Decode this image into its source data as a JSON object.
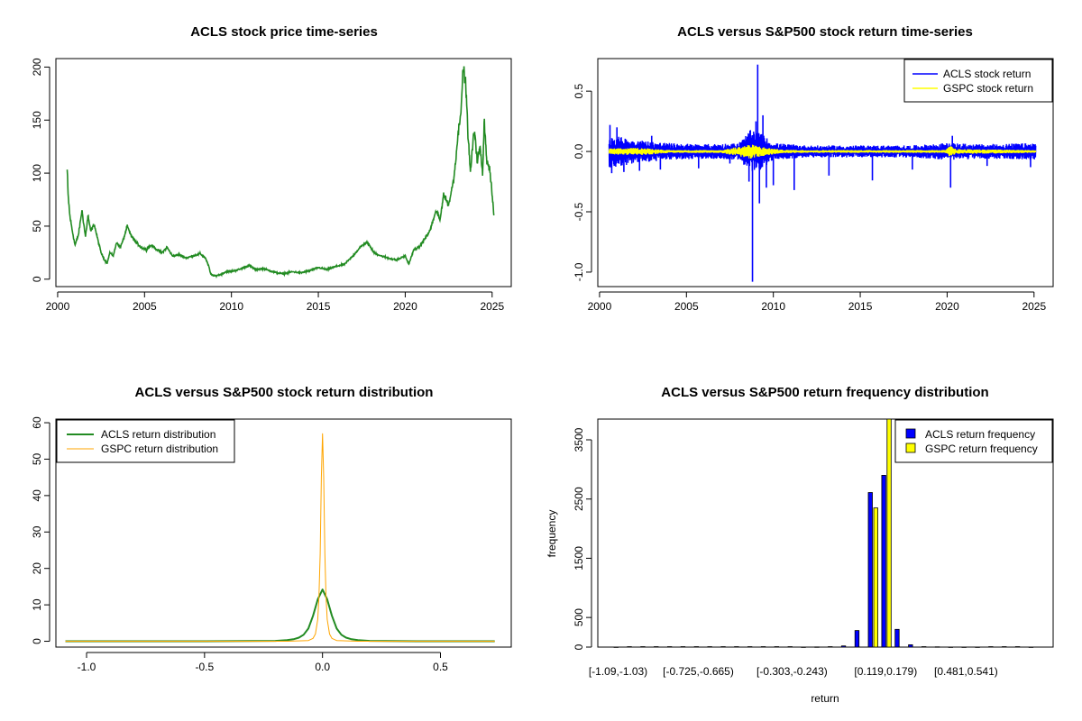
{
  "colors": {
    "acls_price": "#228B22",
    "acls_return": "#0000FF",
    "gspc_return": "#FFFF00",
    "acls_density": "#228B22",
    "gspc_density": "#FFA500",
    "acls_hist": "#0000FF",
    "gspc_hist": "#FFFF00"
  },
  "chart_data": [
    {
      "id": "p1",
      "type": "line",
      "title": "ACLS stock price time-series",
      "xlabel": "",
      "ylabel": "",
      "xlim": [
        1999.9,
        2026.1
      ],
      "ylim": [
        -7,
        208
      ],
      "xticks": [
        2000,
        2005,
        2010,
        2015,
        2020,
        2025
      ],
      "yticks": [
        0,
        50,
        100,
        150,
        200
      ],
      "series": [
        {
          "color": "#228B22",
          "x": [
            2000.55,
            2000.6,
            2000.7,
            2000.85,
            2001.0,
            2001.2,
            2001.4,
            2001.6,
            2001.75,
            2001.9,
            2002.1,
            2002.3,
            2002.5,
            2002.7,
            2002.85,
            2003.0,
            2003.2,
            2003.4,
            2003.6,
            2003.8,
            2004.0,
            2004.2,
            2004.5,
            2004.8,
            2005.1,
            2005.4,
            2005.7,
            2006.0,
            2006.3,
            2006.6,
            2007.0,
            2007.4,
            2007.8,
            2008.2,
            2008.5,
            2008.7,
            2008.8,
            2009.0,
            2009.3,
            2009.7,
            2010.2,
            2010.6,
            2011.0,
            2011.4,
            2011.8,
            2012.2,
            2012.6,
            2013.0,
            2013.5,
            2014.0,
            2014.5,
            2015.0,
            2015.5,
            2016.0,
            2016.5,
            2017.0,
            2017.4,
            2017.8,
            2018.2,
            2018.6,
            2019.0,
            2019.5,
            2020.0,
            2020.2,
            2020.5,
            2020.8,
            2021.0,
            2021.4,
            2021.8,
            2022.0,
            2022.2,
            2022.5,
            2022.8,
            2023.0,
            2023.2,
            2023.35,
            2023.5,
            2023.6,
            2023.75,
            2023.9,
            2024.0,
            2024.15,
            2024.3,
            2024.45,
            2024.55,
            2024.7,
            2024.85,
            2025.0,
            2025.1
          ],
          "y": [
            103,
            80,
            60,
            45,
            32,
            42,
            65,
            40,
            60,
            45,
            52,
            38,
            25,
            18,
            15,
            25,
            22,
            35,
            30,
            38,
            50,
            42,
            35,
            30,
            28,
            32,
            28,
            25,
            30,
            22,
            23,
            20,
            22,
            24,
            20,
            12,
            5,
            3,
            4,
            7,
            8,
            10,
            13,
            9,
            10,
            8,
            6,
            5,
            7,
            6,
            8,
            11,
            9,
            12,
            14,
            22,
            30,
            35,
            25,
            22,
            20,
            18,
            22,
            14,
            28,
            30,
            35,
            45,
            65,
            55,
            80,
            70,
            95,
            130,
            160,
            200,
            180,
            140,
            100,
            130,
            140,
            110,
            125,
            100,
            150,
            110,
            105,
            80,
            60
          ]
        }
      ]
    },
    {
      "id": "p2",
      "type": "line",
      "title": "ACLS versus S&P500 stock return time-series",
      "xlabel": "",
      "ylabel": "",
      "xlim": [
        1999.9,
        2026.1
      ],
      "ylim": [
        -1.12,
        0.77
      ],
      "xticks": [
        2000,
        2005,
        2010,
        2015,
        2020,
        2025
      ],
      "yticks": [
        -1.0,
        -0.5,
        0.0,
        0.5
      ],
      "ytick_labels": [
        "-1.0",
        "-0.5",
        "0.0",
        "0.5"
      ],
      "legend": {
        "position": "top-right",
        "entries": [
          "ACLS stock return",
          "GSPC stock return"
        ]
      },
      "series": [
        {
          "name": "ACLS stock return",
          "color": "#0000FF",
          "x_start": 2000.55,
          "x_end": 2025.1,
          "band": [
            [
              2000.5,
              0.14
            ],
            [
              2002.0,
              0.1
            ],
            [
              2004.0,
              0.07
            ],
            [
              2006.0,
              0.06
            ],
            [
              2008.0,
              0.07
            ],
            [
              2008.7,
              0.18
            ],
            [
              2009.3,
              0.15
            ],
            [
              2010.0,
              0.07
            ],
            [
              2012.0,
              0.05
            ],
            [
              2014.0,
              0.05
            ],
            [
              2016.0,
              0.05
            ],
            [
              2018.0,
              0.05
            ],
            [
              2020.0,
              0.07
            ],
            [
              2022.0,
              0.06
            ],
            [
              2025.1,
              0.07
            ]
          ],
          "spikes": [
            [
              2000.6,
              0.22
            ],
            [
              2000.7,
              -0.18
            ],
            [
              2001.0,
              0.2
            ],
            [
              2001.4,
              -0.17
            ],
            [
              2002.3,
              -0.16
            ],
            [
              2003.0,
              0.13
            ],
            [
              2003.5,
              -0.15
            ],
            [
              2005.7,
              -0.14
            ],
            [
              2007.5,
              -0.1
            ],
            [
              2008.6,
              -0.25
            ],
            [
              2008.8,
              -1.08
            ],
            [
              2009.0,
              0.25
            ],
            [
              2009.1,
              0.72
            ],
            [
              2009.2,
              -0.43
            ],
            [
              2009.4,
              0.3
            ],
            [
              2009.6,
              -0.3
            ],
            [
              2010.0,
              -0.28
            ],
            [
              2011.2,
              -0.32
            ],
            [
              2013.2,
              -0.2
            ],
            [
              2015.7,
              -0.24
            ],
            [
              2018.0,
              -0.15
            ],
            [
              2020.2,
              -0.3
            ],
            [
              2020.3,
              0.13
            ],
            [
              2022.3,
              -0.12
            ],
            [
              2024.8,
              -0.13
            ]
          ]
        },
        {
          "name": "GSPC stock return",
          "color": "#FFFF00",
          "x_start": 2000.55,
          "x_end": 2025.1,
          "band": [
            [
              2000.5,
              0.025
            ],
            [
              2002.5,
              0.03
            ],
            [
              2004.0,
              0.012
            ],
            [
              2007.0,
              0.012
            ],
            [
              2008.7,
              0.06
            ],
            [
              2009.5,
              0.035
            ],
            [
              2010.5,
              0.015
            ],
            [
              2012.0,
              0.012
            ],
            [
              2019.9,
              0.012
            ],
            [
              2020.2,
              0.05
            ],
            [
              2020.5,
              0.02
            ],
            [
              2022.5,
              0.018
            ],
            [
              2025.1,
              0.012
            ]
          ]
        }
      ]
    },
    {
      "id": "p3",
      "type": "line",
      "title": "ACLS versus S&P500 stock return distribution",
      "xlabel": "",
      "ylabel": "",
      "xlim": [
        -1.13,
        0.8
      ],
      "ylim": [
        -1.6,
        61
      ],
      "xticks": [
        -1.0,
        -0.5,
        0.0,
        0.5
      ],
      "xtick_labels": [
        "-1.0",
        "-0.5",
        "0.0",
        "0.5"
      ],
      "yticks": [
        0,
        10,
        20,
        30,
        40,
        50,
        60
      ],
      "legend": {
        "position": "top-left",
        "entries": [
          "ACLS return distribution",
          "GSPC return distribution"
        ]
      },
      "series": [
        {
          "name": "ACLS return distribution",
          "color": "#228B22",
          "x": [
            -1.09,
            -0.5,
            -0.2,
            -0.15,
            -0.12,
            -0.1,
            -0.08,
            -0.06,
            -0.04,
            -0.02,
            0.0,
            0.02,
            0.04,
            0.06,
            0.08,
            0.1,
            0.12,
            0.15,
            0.2,
            0.4,
            0.73
          ],
          "y": [
            0,
            0,
            0.1,
            0.3,
            0.6,
            1.0,
            1.8,
            3.5,
            7.0,
            11.5,
            14.2,
            11.5,
            7.0,
            3.5,
            1.8,
            1.0,
            0.6,
            0.3,
            0.1,
            0,
            0
          ]
        },
        {
          "name": "GSPC return distribution",
          "color": "#FFA500",
          "x": [
            -1.09,
            -0.15,
            -0.06,
            -0.04,
            -0.03,
            -0.02,
            -0.015,
            -0.01,
            -0.005,
            0.0,
            0.005,
            0.01,
            0.015,
            0.02,
            0.03,
            0.04,
            0.06,
            0.15,
            0.73
          ],
          "y": [
            0,
            0,
            0.2,
            0.8,
            2.0,
            6.0,
            12.0,
            24.0,
            45.0,
            57.0,
            45.0,
            24.0,
            12.0,
            6.0,
            2.0,
            0.8,
            0.2,
            0,
            0
          ]
        }
      ]
    },
    {
      "id": "p4",
      "type": "bar",
      "title": "ACLS versus S&P500 return frequency distribution",
      "xlabel": "return",
      "ylabel": "frequency",
      "ylim": [
        0,
        3850
      ],
      "yticks": [
        0,
        500,
        1500,
        2500,
        3500
      ],
      "category_labels": [
        {
          "index": 0,
          "label": "[-1.09,-1.03)"
        },
        {
          "index": 6,
          "label": "[-0.725,-0.665)"
        },
        {
          "index": 13,
          "label": "[-0.303,-0.243)"
        },
        {
          "index": 20,
          "label": "[0.119,0.179)"
        },
        {
          "index": 26,
          "label": "[0.481,0.541)"
        }
      ],
      "legend": {
        "position": "top-right",
        "entries": [
          "ACLS return frequency",
          "GSPC return frequency"
        ]
      },
      "series": [
        {
          "name": "ACLS return frequency",
          "color": "#0000FF",
          "values": [
            1,
            0,
            0,
            0,
            0,
            0,
            0,
            0,
            0,
            0,
            0,
            0,
            0,
            0,
            1,
            3,
            8,
            20,
            280,
            2610,
            2900,
            300,
            40,
            8,
            4,
            2,
            1,
            1,
            0,
            0,
            0,
            1
          ]
        },
        {
          "name": "GSPC return frequency",
          "color": "#FFFF00",
          "values": [
            0,
            0,
            0,
            0,
            0,
            0,
            0,
            0,
            0,
            0,
            0,
            0,
            0,
            0,
            0,
            0,
            0,
            0,
            0,
            2350,
            3850,
            0,
            0,
            0,
            0,
            0,
            0,
            0,
            0,
            0,
            0,
            0
          ]
        }
      ]
    }
  ]
}
